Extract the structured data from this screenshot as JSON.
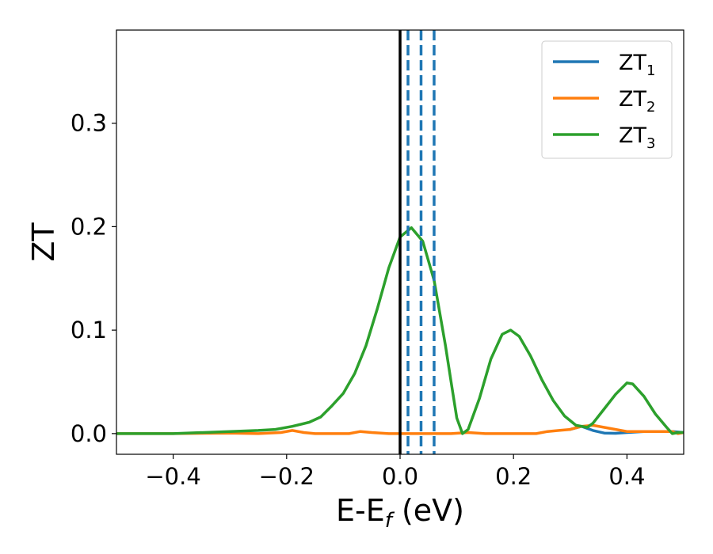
{
  "chart_data": {
    "type": "line",
    "xlabel": "E-E",
    "xlabel_sub": "f",
    "xlabel_unit": "(eV)",
    "ylabel": "ZT",
    "xlim": [
      -0.5,
      0.5
    ],
    "ylim": [
      -0.02,
      0.39
    ],
    "x_ticks": [
      -0.4,
      -0.2,
      0.0,
      0.2,
      0.4
    ],
    "x_tick_labels": [
      "−0.4",
      "−0.2",
      "0.0",
      "0.2",
      "0.4"
    ],
    "y_ticks": [
      0.0,
      0.1,
      0.2,
      0.3
    ],
    "y_tick_labels": [
      "0.0",
      "0.1",
      "0.2",
      "0.3"
    ],
    "grid": false,
    "legend_position": "top-right",
    "vertical_lines": [
      {
        "x": 0.0,
        "style": "solid",
        "color": "#000000"
      },
      {
        "x": 0.014,
        "style": "dashed",
        "color": "#1f77b4"
      },
      {
        "x": 0.037,
        "style": "dashed",
        "color": "#1f77b4"
      },
      {
        "x": 0.06,
        "style": "dashed",
        "color": "#1f77b4"
      }
    ],
    "series": [
      {
        "name": "ZT",
        "name_sub": "1",
        "color": "#1f77b4",
        "points": [
          [
            0.3,
            0.004
          ],
          [
            0.32,
            0.007
          ],
          [
            0.34,
            0.003
          ],
          [
            0.36,
            0.0005
          ],
          [
            0.38,
            0.0003
          ],
          [
            0.4,
            0.001
          ],
          [
            0.43,
            0.002
          ],
          [
            0.46,
            0.002
          ],
          [
            0.48,
            0.002
          ],
          [
            0.5,
            0.001
          ]
        ]
      },
      {
        "name": "ZT",
        "name_sub": "2",
        "color": "#ff7f0e",
        "points": [
          [
            -0.5,
            0.0
          ],
          [
            -0.4,
            0.0
          ],
          [
            -0.3,
            0.0005
          ],
          [
            -0.25,
            0.0
          ],
          [
            -0.21,
            0.001
          ],
          [
            -0.19,
            0.003
          ],
          [
            -0.17,
            0.001
          ],
          [
            -0.15,
            0.0
          ],
          [
            -0.12,
            0.0
          ],
          [
            -0.09,
            0.0
          ],
          [
            -0.07,
            0.002
          ],
          [
            -0.05,
            0.001
          ],
          [
            -0.02,
            0.0
          ],
          [
            0.0,
            0.0
          ],
          [
            0.05,
            0.0
          ],
          [
            0.09,
            0.0
          ],
          [
            0.12,
            0.001
          ],
          [
            0.15,
            0.0
          ],
          [
            0.2,
            0.0
          ],
          [
            0.24,
            0.0
          ],
          [
            0.26,
            0.002
          ],
          [
            0.28,
            0.003
          ],
          [
            0.3,
            0.004
          ],
          [
            0.32,
            0.007
          ],
          [
            0.34,
            0.008
          ],
          [
            0.36,
            0.006
          ],
          [
            0.4,
            0.002
          ],
          [
            0.45,
            0.002
          ],
          [
            0.48,
            0.002
          ],
          [
            0.49,
            0.0
          ],
          [
            0.5,
            0.001
          ]
        ]
      },
      {
        "name": "ZT",
        "name_sub": "3",
        "color": "#2ca02c",
        "points": [
          [
            -0.5,
            0.0
          ],
          [
            -0.4,
            0.0
          ],
          [
            -0.3,
            0.002
          ],
          [
            -0.25,
            0.003
          ],
          [
            -0.22,
            0.004
          ],
          [
            -0.19,
            0.007
          ],
          [
            -0.16,
            0.011
          ],
          [
            -0.14,
            0.016
          ],
          [
            -0.12,
            0.027
          ],
          [
            -0.1,
            0.039
          ],
          [
            -0.08,
            0.058
          ],
          [
            -0.06,
            0.085
          ],
          [
            -0.04,
            0.121
          ],
          [
            -0.02,
            0.16
          ],
          [
            0.0,
            0.19
          ],
          [
            0.02,
            0.199
          ],
          [
            0.04,
            0.186
          ],
          [
            0.06,
            0.148
          ],
          [
            0.08,
            0.085
          ],
          [
            0.09,
            0.05
          ],
          [
            0.1,
            0.015
          ],
          [
            0.11,
            0.0
          ],
          [
            0.12,
            0.004
          ],
          [
            0.14,
            0.034
          ],
          [
            0.16,
            0.072
          ],
          [
            0.18,
            0.096
          ],
          [
            0.195,
            0.1
          ],
          [
            0.21,
            0.094
          ],
          [
            0.23,
            0.075
          ],
          [
            0.25,
            0.052
          ],
          [
            0.27,
            0.032
          ],
          [
            0.29,
            0.017
          ],
          [
            0.31,
            0.008
          ],
          [
            0.33,
            0.006
          ],
          [
            0.34,
            0.01
          ],
          [
            0.36,
            0.024
          ],
          [
            0.38,
            0.038
          ],
          [
            0.4,
            0.049
          ],
          [
            0.41,
            0.048
          ],
          [
            0.43,
            0.036
          ],
          [
            0.45,
            0.019
          ],
          [
            0.47,
            0.006
          ],
          [
            0.48,
            0.0
          ],
          [
            0.49,
            0.001
          ],
          [
            0.5,
            0.001
          ]
        ]
      }
    ]
  }
}
